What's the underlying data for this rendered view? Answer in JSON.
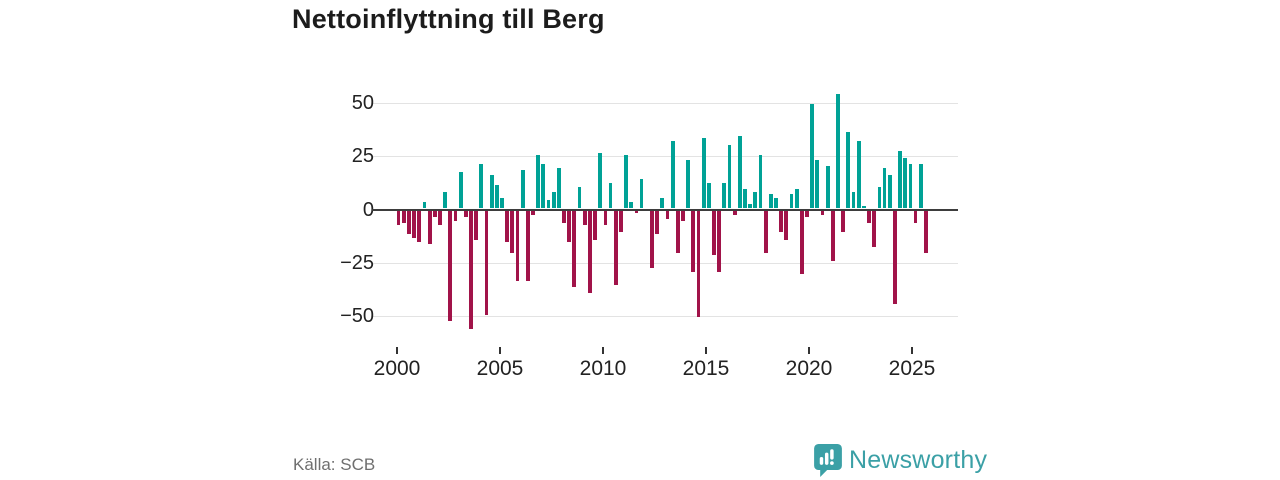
{
  "header": {
    "title": "Nettoinflyttning till Berg"
  },
  "footer": {
    "source": "Källa: SCB",
    "brand": "Newsworthy"
  },
  "colors": {
    "positive_bar": "#00A296",
    "negative_bar": "#A11349",
    "gridline": "#e3e3e3",
    "zero_line": "#3d3d3d",
    "axis_text": "#222222",
    "title_text": "#1c1c1c",
    "source_text": "#6f6f6f",
    "brand_teal": "#3BA0A6"
  },
  "chart_data": {
    "type": "bar",
    "title": "Nettoinflyttning till Berg",
    "xlabel": "",
    "ylabel": "",
    "grid": "horizontal",
    "legend": "none",
    "ylim": [
      -62,
      62
    ],
    "y_ticks": [
      50,
      25,
      0,
      -25,
      -50
    ],
    "y_tick_labels": [
      "50",
      "25",
      "0",
      "−25",
      "−50"
    ],
    "x_tick_labels": [
      "2000",
      "2005",
      "2010",
      "2015",
      "2020",
      "2025"
    ],
    "periods": [
      "2000 K1",
      "2000 K2",
      "2000 K3",
      "2000 K4",
      "2001 K1",
      "2001 K2",
      "2001 K3",
      "2001 K4",
      "2002 K1",
      "2002 K2",
      "2002 K3",
      "2002 K4",
      "2003 K1",
      "2003 K2",
      "2003 K3",
      "2003 K4",
      "2004 K1",
      "2004 K2",
      "2004 K3",
      "2004 K4",
      "2005 K1",
      "2005 K2",
      "2005 K3",
      "2005 K4",
      "2006 K1",
      "2006 K2",
      "2006 K3",
      "2006 K4",
      "2007 K1",
      "2007 K2",
      "2007 K3",
      "2007 K4",
      "2008 K1",
      "2008 K2",
      "2008 K3",
      "2008 K4",
      "2009 K1",
      "2009 K2",
      "2009 K3",
      "2009 K4",
      "2010 K1",
      "2010 K2",
      "2010 K3",
      "2010 K4",
      "2011 K1",
      "2011 K2",
      "2011 K3",
      "2011 K4",
      "2012 K1",
      "2012 K2",
      "2012 K3",
      "2012 K4",
      "2013 K1",
      "2013 K2",
      "2013 K3",
      "2013 K4",
      "2014 K1",
      "2014 K2",
      "2014 K3",
      "2014 K4",
      "2015 K1",
      "2015 K2",
      "2015 K3",
      "2015 K4",
      "2016 K1",
      "2016 K2",
      "2016 K3",
      "2016 K4",
      "2017 K1",
      "2017 K2",
      "2017 K3",
      "2017 K4",
      "2018 K1",
      "2018 K2",
      "2018 K3",
      "2018 K4",
      "2019 K1",
      "2019 K2",
      "2019 K3",
      "2019 K4",
      "2020 K1",
      "2020 K2",
      "2020 K3",
      "2020 K4",
      "2021 K1",
      "2021 K2",
      "2021 K3",
      "2021 K4",
      "2022 K1",
      "2022 K2",
      "2022 K3",
      "2022 K4",
      "2023 K1",
      "2023 K2",
      "2023 K3",
      "2023 K4",
      "2024 K1",
      "2024 K2",
      "2024 K3",
      "2024 K4",
      "2025 K1",
      "2025 K2",
      "2025 K3"
    ],
    "values": [
      -7,
      -6,
      -11,
      -13,
      -15,
      3,
      -16,
      -3,
      -7,
      8,
      -52,
      -5,
      17,
      -3,
      -56,
      -14,
      21,
      -49,
      16,
      11,
      5,
      -15,
      -20,
      -33,
      18,
      -33,
      -2,
      25,
      21,
      4,
      8,
      19,
      -6,
      -15,
      -36,
      10,
      -7,
      -39,
      -14,
      26,
      -7,
      12,
      -35,
      -10,
      25,
      3,
      -1,
      14,
      0,
      -27,
      -11,
      5,
      -4,
      32,
      -20,
      -5,
      23,
      -29,
      -50,
      33,
      12,
      -21,
      -29,
      12,
      30,
      -2,
      34,
      9,
      2,
      8,
      25,
      -20,
      7,
      5,
      -10,
      -14,
      7,
      9,
      -30,
      -3,
      49,
      23,
      -2,
      20,
      -24,
      54,
      -10,
      36,
      8,
      32,
      1,
      -6,
      -17,
      10,
      19,
      16,
      -44,
      27,
      24,
      21,
      -6,
      21,
      -20
    ]
  }
}
